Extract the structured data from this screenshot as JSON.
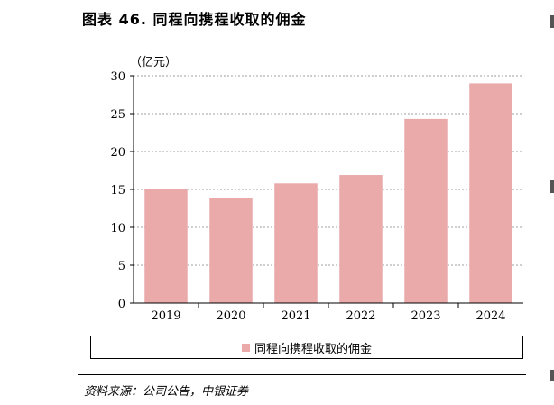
{
  "title": "图表 46. 同程向携程收取的佣金",
  "unit_label": "（亿元）",
  "source": "资料来源：公司公告，中银证券",
  "colors": {
    "bar": "#eaaaaa",
    "grid": "#808080",
    "axis": "#000000"
  },
  "chart_data": {
    "type": "bar",
    "categories": [
      "2019",
      "2020",
      "2021",
      "2022",
      "2023",
      "2024"
    ],
    "series": [
      {
        "name": "同程向携程收取的佣金",
        "values": [
          15.0,
          13.9,
          15.8,
          16.9,
          24.3,
          29.0
        ]
      }
    ],
    "ylim": [
      0,
      30
    ],
    "yticks": [
      0,
      5,
      10,
      15,
      20,
      25,
      30
    ],
    "grid": true,
    "legend_position": "bottom"
  }
}
